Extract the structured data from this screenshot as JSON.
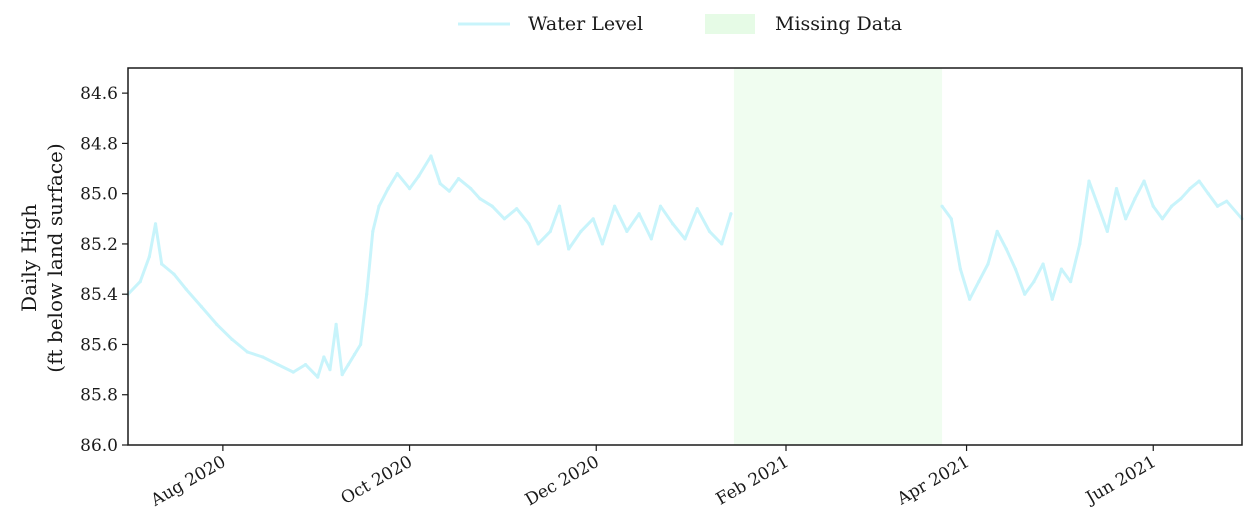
{
  "chart_data": {
    "type": "line",
    "title": "",
    "ylabel_line1": "Daily High",
    "ylabel_line2": "(ft below land surface)",
    "xlabel": "",
    "y_axis_inverted": true,
    "ylim": [
      84.5,
      86.0
    ],
    "yticks": [
      "84.6",
      "84.8",
      "85.0",
      "85.2",
      "85.4",
      "85.6",
      "85.8",
      "86.0"
    ],
    "xlim": [
      "2020-07-01",
      "2021-06-30"
    ],
    "xticks": [
      {
        "label": "Aug 2020",
        "date": "2020-08-01"
      },
      {
        "label": "Oct 2020",
        "date": "2020-10-01"
      },
      {
        "label": "Dec 2020",
        "date": "2020-12-01"
      },
      {
        "label": "Feb 2021",
        "date": "2021-02-01"
      },
      {
        "label": "Apr 2021",
        "date": "2021-04-01"
      },
      {
        "label": "Jun 2021",
        "date": "2021-06-01"
      }
    ],
    "grid": false,
    "legend_position": "top-center",
    "colors": {
      "water_level": "#c8f4fb",
      "missing_data": "#e6fbe6",
      "axes": "#1a1a1a"
    },
    "legend": [
      {
        "key": "water_level",
        "label": "Water Level"
      },
      {
        "key": "missing_data",
        "label": "Missing Data"
      }
    ],
    "missing_data_span": [
      "2021-01-15",
      "2021-03-24"
    ],
    "series": [
      {
        "name": "Water Level",
        "segments": [
          {
            "x": [
              "2020-07-01",
              "2020-07-05",
              "2020-07-08",
              "2020-07-10",
              "2020-07-12",
              "2020-07-16",
              "2020-07-20",
              "2020-07-25",
              "2020-07-30",
              "2020-08-04",
              "2020-08-09",
              "2020-08-14",
              "2020-08-19",
              "2020-08-24",
              "2020-08-28",
              "2020-09-01",
              "2020-09-03",
              "2020-09-05",
              "2020-09-07",
              "2020-09-09",
              "2020-09-11",
              "2020-09-13",
              "2020-09-15",
              "2020-09-17",
              "2020-09-19",
              "2020-09-21",
              "2020-09-24",
              "2020-09-27",
              "2020-10-01",
              "2020-10-04",
              "2020-10-08",
              "2020-10-11",
              "2020-10-14",
              "2020-10-17",
              "2020-10-21",
              "2020-10-24",
              "2020-10-28",
              "2020-11-01",
              "2020-11-05",
              "2020-11-09",
              "2020-11-12",
              "2020-11-16",
              "2020-11-19",
              "2020-11-22",
              "2020-11-26",
              "2020-11-30",
              "2020-12-03",
              "2020-12-07",
              "2020-12-11",
              "2020-12-15",
              "2020-12-19",
              "2020-12-22",
              "2020-12-26",
              "2020-12-30",
              "2021-01-03",
              "2021-01-07",
              "2021-01-11",
              "2021-01-14"
            ],
            "y": [
              85.4,
              85.35,
              85.25,
              85.12,
              85.28,
              85.32,
              85.38,
              85.45,
              85.52,
              85.58,
              85.63,
              85.65,
              85.68,
              85.71,
              85.68,
              85.73,
              85.65,
              85.7,
              85.52,
              85.72,
              85.68,
              85.64,
              85.6,
              85.4,
              85.15,
              85.05,
              84.98,
              84.92,
              84.98,
              84.93,
              84.85,
              84.96,
              84.99,
              84.94,
              84.98,
              85.02,
              85.05,
              85.1,
              85.06,
              85.12,
              85.2,
              85.15,
              85.05,
              85.22,
              85.15,
              85.1,
              85.2,
              85.05,
              85.15,
              85.08,
              85.18,
              85.05,
              85.12,
              85.18,
              85.06,
              85.15,
              85.2,
              85.08
            ],
            "markers": [
              {
                "x": "2020-10-10",
                "y": 84.8
              }
            ]
          },
          {
            "x": [
              "2021-03-24",
              "2021-03-27",
              "2021-03-30",
              "2021-04-02",
              "2021-04-05",
              "2021-04-08",
              "2021-04-11",
              "2021-04-14",
              "2021-04-17",
              "2021-04-20",
              "2021-04-23",
              "2021-04-26",
              "2021-04-29",
              "2021-05-02",
              "2021-05-05",
              "2021-05-08",
              "2021-05-11",
              "2021-05-14",
              "2021-05-17",
              "2021-05-20",
              "2021-05-23",
              "2021-05-26",
              "2021-05-29",
              "2021-06-01",
              "2021-06-04",
              "2021-06-07",
              "2021-06-10",
              "2021-06-13",
              "2021-06-16",
              "2021-06-19",
              "2021-06-22",
              "2021-06-25",
              "2021-06-30"
            ],
            "y": [
              85.05,
              85.1,
              85.3,
              85.42,
              85.35,
              85.28,
              85.15,
              85.22,
              85.3,
              85.4,
              85.35,
              85.28,
              85.42,
              85.3,
              85.35,
              85.2,
              84.95,
              85.05,
              85.15,
              84.98,
              85.1,
              85.02,
              84.95,
              85.05,
              85.1,
              85.05,
              85.02,
              84.98,
              84.95,
              85.0,
              85.05,
              85.03,
              85.1
            ]
          }
        ]
      }
    ]
  }
}
